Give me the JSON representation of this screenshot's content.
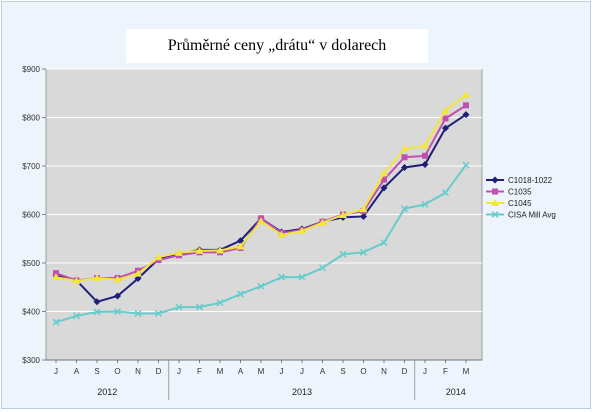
{
  "title": "Průměrné ceny „drátu“ v dolarech",
  "chart_data": {
    "type": "line",
    "title": "Průměrné ceny „drátu“ v dolarech",
    "xlabel": "",
    "ylabel": "",
    "categories": [
      "J",
      "A",
      "S",
      "O",
      "N",
      "D",
      "J",
      "F",
      "M",
      "A",
      "M",
      "J",
      "J",
      "A",
      "S",
      "O",
      "N",
      "D",
      "J",
      "F",
      "M"
    ],
    "year_labels": [
      {
        "label": "2012",
        "category_index": 2.5
      },
      {
        "label": "2013",
        "category_index": 12
      },
      {
        "label": "2014",
        "category_index": 19.5
      }
    ],
    "ylim": [
      300,
      900
    ],
    "yticks": [
      300,
      400,
      500,
      600,
      700,
      800,
      900
    ],
    "ytick_labels": [
      "$300",
      "$400",
      "$500",
      "$600",
      "$700",
      "$800",
      "$900"
    ],
    "grid": "horizontal",
    "legend_position": "right",
    "plot_background": "#d9d9d9",
    "series": [
      {
        "name": "C1018-1022",
        "color": "#1f1f7a",
        "marker": "diamond",
        "values": [
          474,
          464,
          420,
          432,
          468,
          508,
          518,
          527,
          527,
          546,
          592,
          564,
          570,
          585,
          594,
          596,
          655,
          697,
          703,
          778,
          806
        ]
      },
      {
        "name": "C1035",
        "color": "#c050b0",
        "marker": "square",
        "values": [
          479,
          464,
          469,
          469,
          484,
          506,
          516,
          522,
          522,
          531,
          592,
          562,
          568,
          585,
          600,
          607,
          672,
          718,
          721,
          798,
          825
        ]
      },
      {
        "name": "C1045",
        "color": "#f0e63c",
        "marker": "triangle",
        "values": [
          471,
          463,
          469,
          466,
          478,
          512,
          521,
          525,
          526,
          534,
          586,
          558,
          566,
          583,
          599,
          611,
          685,
          735,
          742,
          814,
          847
        ]
      },
      {
        "name": "CISA Mill Avg",
        "color": "#66cccc",
        "marker": "x",
        "values": [
          378,
          391,
          399,
          400,
          396,
          396,
          409,
          409,
          418,
          436,
          452,
          471,
          471,
          490,
          518,
          522,
          542,
          612,
          621,
          645,
          702
        ]
      }
    ]
  }
}
